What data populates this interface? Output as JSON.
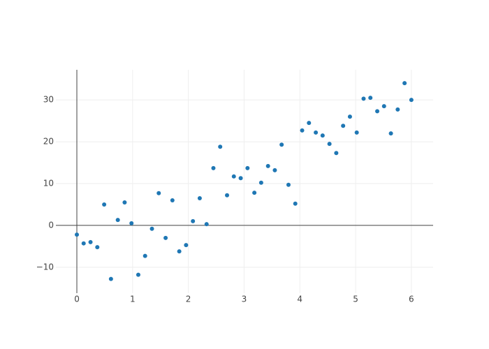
{
  "chart_data": {
    "type": "scatter",
    "x": [
      0,
      0.122,
      0.245,
      0.367,
      0.49,
      0.612,
      0.735,
      0.857,
      0.98,
      1.102,
      1.224,
      1.347,
      1.469,
      1.592,
      1.714,
      1.837,
      1.959,
      2.082,
      2.204,
      2.327,
      2.449,
      2.571,
      2.694,
      2.816,
      2.939,
      3.061,
      3.184,
      3.306,
      3.429,
      3.551,
      3.673,
      3.796,
      3.918,
      4.041,
      4.163,
      4.286,
      4.408,
      4.531,
      4.653,
      4.776,
      4.898,
      5.02,
      5.143,
      5.265,
      5.388,
      5.51,
      5.633,
      5.755,
      5.878,
      6
    ],
    "series": [
      {
        "color": "#1f77b4",
        "values": [
          -2.2,
          -4.3,
          -4.0,
          -5.2,
          5.0,
          -12.8,
          1.3,
          5.5,
          0.5,
          -11.8,
          -7.3,
          -0.8,
          7.7,
          -3.0,
          6.0,
          -6.2,
          -4.7,
          1.0,
          6.5,
          0.3,
          13.7,
          18.8,
          7.2,
          11.7,
          11.3,
          13.7,
          7.8,
          10.2,
          14.2,
          13.2,
          19.3,
          9.7,
          5.2,
          22.7,
          24.5,
          22.2,
          21.5,
          19.5,
          17.3,
          23.8,
          26.0,
          22.2,
          30.3,
          30.5,
          27.3,
          28.5,
          22.0,
          27.7,
          34.0,
          30.0
        ]
      }
    ],
    "xlim": [
      -0.376,
      6.39
    ],
    "ylim": [
      -16.2,
      37.2
    ],
    "xticks": [
      0,
      1,
      2,
      3,
      4,
      5,
      6
    ],
    "yticks": [
      {
        "value": -10,
        "label": "−10"
      },
      0,
      10,
      20,
      30
    ],
    "grid": true,
    "zeroline": true
  }
}
